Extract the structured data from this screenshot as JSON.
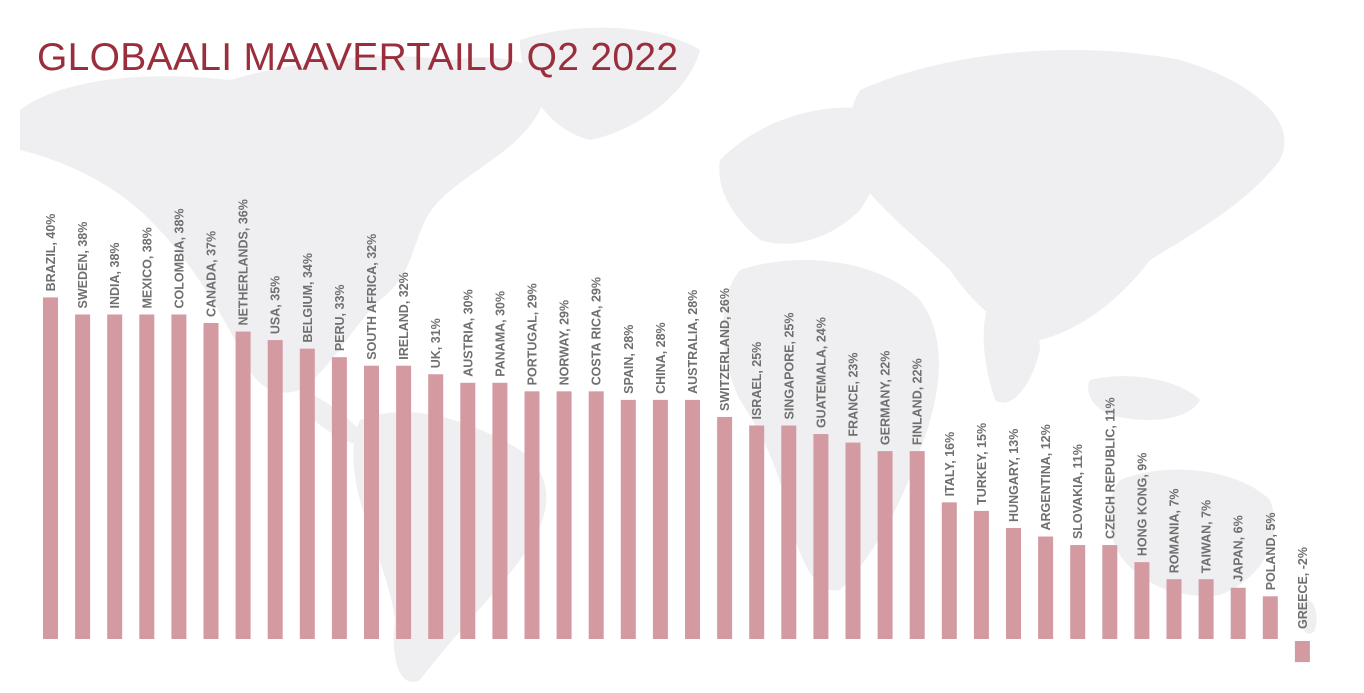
{
  "title": "GLOBAALI MAAVERTAILU Q2 2022",
  "colors": {
    "title": "#9b2e3c",
    "bar": "#d49aa1",
    "map": "#efeff1",
    "label": "#6f6f6f"
  },
  "chart_data": {
    "type": "bar",
    "title": "GLOBAALI MAAVERTAILU Q2 2022",
    "xlabel": "",
    "ylabel": "",
    "grid": false,
    "legend": "none",
    "ylim": [
      -2,
      40
    ],
    "categories": [
      "BRAZIL",
      "SWEDEN",
      "INDIA",
      "MEXICO",
      "COLOMBIA",
      "CANADA",
      "NETHERLANDS",
      "USA",
      "BELGIUM",
      "PERU",
      "SOUTH AFRICA",
      "IRELAND",
      "UK",
      "AUSTRIA",
      "PANAMA",
      "PORTUGAL",
      "NORWAY",
      "COSTA RICA",
      "SPAIN",
      "CHINA",
      "AUSTRALIA",
      "SWITZERLAND",
      "ISRAEL",
      "SINGAPORE",
      "GUATEMALA",
      "FRANCE",
      "GERMANY",
      "FINLAND",
      "ITALY",
      "TURKEY",
      "HUNGARY",
      "ARGENTINA",
      "SLOVAKIA",
      "CZECH REPUBLIC",
      "HONG KONG",
      "ROMANIA",
      "TAIWAN",
      "JAPAN",
      "POLAND",
      "GREECE"
    ],
    "values": [
      40,
      38,
      38,
      38,
      38,
      37,
      36,
      35,
      34,
      33,
      32,
      32,
      31,
      30,
      30,
      29,
      29,
      29,
      28,
      28,
      28,
      26,
      25,
      25,
      24,
      23,
      22,
      22,
      16,
      15,
      13,
      12,
      11,
      11,
      9,
      7,
      7,
      6,
      5,
      -2
    ],
    "labels": [
      "BRAZIL, 40%",
      "SWEDEN, 38%",
      "INDIA, 38%",
      "MEXICO, 38%",
      "COLOMBIA, 38%",
      "CANADA, 37%",
      "NETHERLANDS, 36%",
      "USA, 35%",
      "BELGIUM, 34%",
      "PERU, 33%",
      "SOUTH AFRICA, 32%",
      "IRELAND, 32%",
      "UK, 31%",
      "AUSTRIA, 30%",
      "PANAMA, 30%",
      "PORTUGAL, 29%",
      "NORWAY, 29%",
      "COSTA RICA, 29%",
      "SPAIN, 28%",
      "CHINA, 28%",
      "AUSTRALIA, 28%",
      "SWITZERLAND, 26%",
      "ISRAEL, 25%",
      "SINGAPORE, 25%",
      "GUATEMALA, 24%",
      "FRANCE, 23%",
      "GERMANY, 22%",
      "FINLAND, 22%",
      "ITALY, 16%",
      "TURKEY, 15%",
      "HUNGARY, 13%",
      "ARGENTINA, 12%",
      "SLOVAKIA, 11%",
      "CZECH REPUBLIC, 11%",
      "HONG KONG, 9%",
      "ROMANIA, 7%",
      "TAIWAN, 7%",
      "JAPAN, 6%",
      "POLAND, 5%",
      "GREECE, -2%"
    ]
  }
}
